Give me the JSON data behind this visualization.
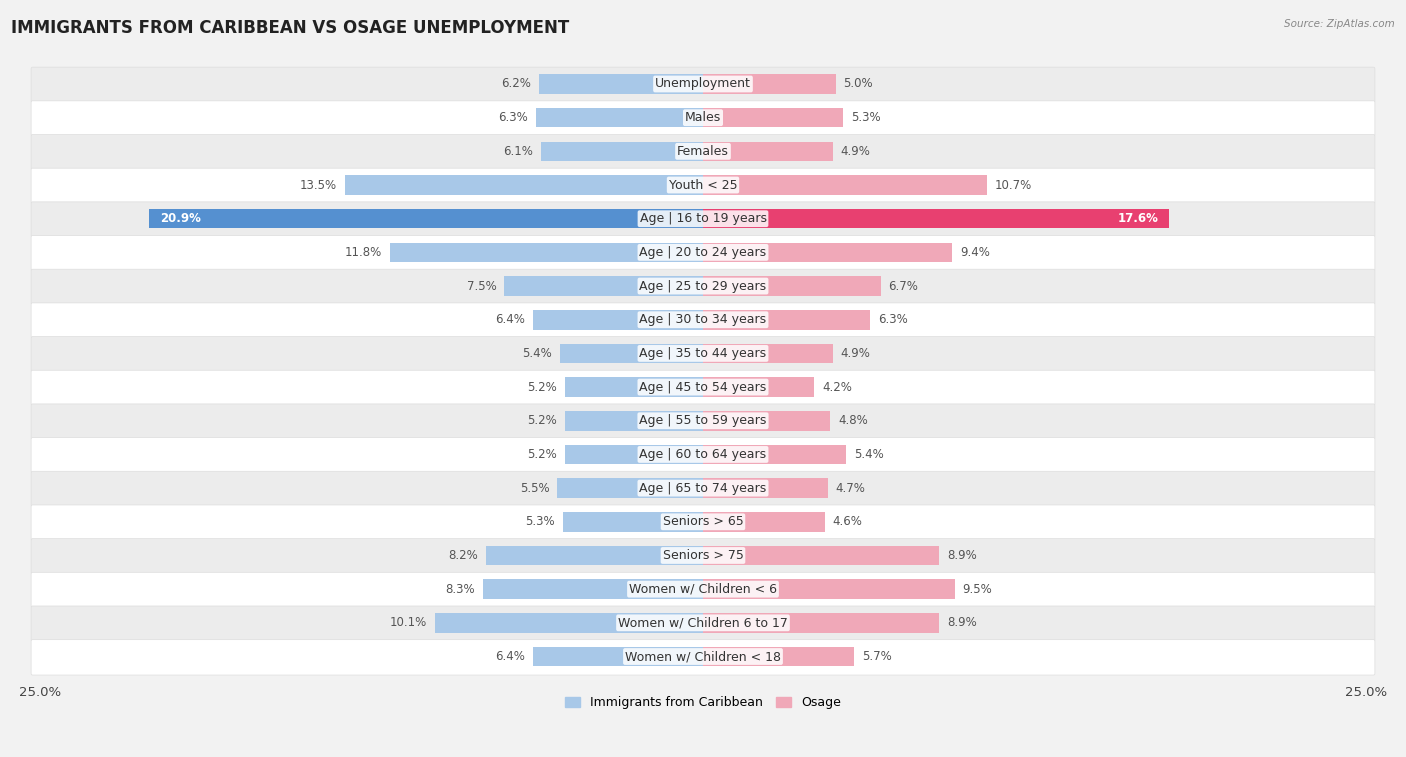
{
  "title": "IMMIGRANTS FROM CARIBBEAN VS OSAGE UNEMPLOYMENT",
  "source": "Source: ZipAtlas.com",
  "categories": [
    "Unemployment",
    "Males",
    "Females",
    "Youth < 25",
    "Age | 16 to 19 years",
    "Age | 20 to 24 years",
    "Age | 25 to 29 years",
    "Age | 30 to 34 years",
    "Age | 35 to 44 years",
    "Age | 45 to 54 years",
    "Age | 55 to 59 years",
    "Age | 60 to 64 years",
    "Age | 65 to 74 years",
    "Seniors > 65",
    "Seniors > 75",
    "Women w/ Children < 6",
    "Women w/ Children 6 to 17",
    "Women w/ Children < 18"
  ],
  "left_values": [
    6.2,
    6.3,
    6.1,
    13.5,
    20.9,
    11.8,
    7.5,
    6.4,
    5.4,
    5.2,
    5.2,
    5.2,
    5.5,
    5.3,
    8.2,
    8.3,
    10.1,
    6.4
  ],
  "right_values": [
    5.0,
    5.3,
    4.9,
    10.7,
    17.6,
    9.4,
    6.7,
    6.3,
    4.9,
    4.2,
    4.8,
    5.4,
    4.7,
    4.6,
    8.9,
    9.5,
    8.9,
    5.7
  ],
  "left_color": "#a8c8e8",
  "right_color": "#f0a8b8",
  "highlight_left_color": "#5590d0",
  "highlight_right_color": "#e84070",
  "highlight_index": 4,
  "axis_max": 25.0,
  "legend_left": "Immigrants from Caribbean",
  "legend_right": "Osage",
  "background_color": "#f2f2f2",
  "row_color_odd": "#ffffff",
  "row_color_even": "#ececec",
  "title_fontsize": 12,
  "label_fontsize": 9,
  "value_fontsize": 8.5
}
